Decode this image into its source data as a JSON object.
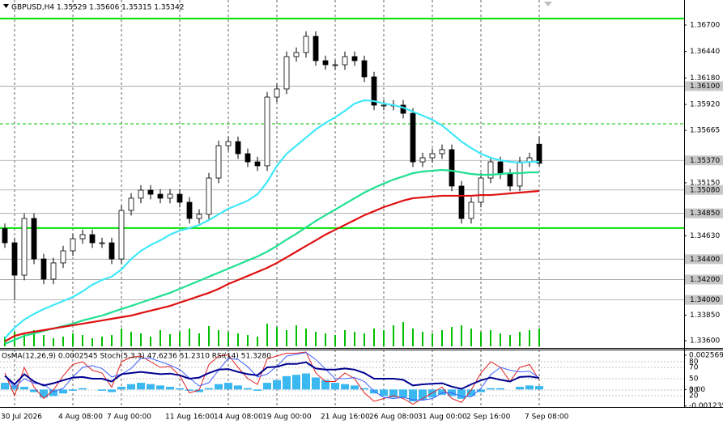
{
  "chart_data": [
    {
      "type": "candlestick",
      "title": "GBPUSD,H4 1.35529 1.35606 1.35315 1.35342",
      "categories": [
        null,
        "30 Jul 2026",
        null,
        null,
        null,
        null,
        null,
        "4 Aug 08:00",
        null,
        null,
        null,
        null,
        "7 Aug 00:00",
        null,
        null,
        null,
        null,
        null,
        "11 Aug 16:00",
        null,
        null,
        null,
        null,
        "14 Aug 08:00",
        null,
        null,
        null,
        null,
        "19 Aug 00:00",
        null,
        null,
        null,
        null,
        null,
        "21 Aug 16:00",
        null,
        null,
        null,
        null,
        "26 Aug 08:00",
        null,
        null,
        null,
        null,
        "31 Aug 00:00",
        null,
        null,
        null,
        null,
        "2 Sep 16:00",
        null,
        null,
        null,
        null,
        null,
        "7 Sep 08:00"
      ],
      "open": [
        1.347,
        1.34561,
        1.34243,
        1.348,
        1.34402,
        1.34204,
        1.34363,
        1.34482,
        1.34601,
        1.34641,
        1.34561,
        1.34561,
        1.34402,
        1.34879,
        1.34999,
        1.35078,
        1.35038,
        1.34999,
        1.35038,
        1.34959,
        1.348,
        1.3484,
        1.35197,
        1.35515,
        1.35555,
        1.35436,
        1.35356,
        1.35317,
        1.35992,
        1.36072,
        1.3639,
        1.3643,
        1.36589,
        1.3635,
        1.3631,
        1.3631,
        1.3639,
        1.3635,
        1.36191,
        1.35913,
        1.35913,
        1.35913,
        1.35833,
        1.35356,
        1.35396,
        1.35436,
        1.35476,
        1.35118,
        1.348,
        1.34959,
        1.35197,
        1.35356,
        1.35237,
        1.35118,
        1.35356,
        1.35529
      ],
      "high": [
        1.3475,
        1.34611,
        1.3485,
        1.3485,
        1.34452,
        1.34413,
        1.34532,
        1.34651,
        1.34691,
        1.34691,
        1.34611,
        1.34611,
        1.34929,
        1.35049,
        1.35128,
        1.35128,
        1.35088,
        1.35088,
        1.35088,
        1.35009,
        1.3489,
        1.35247,
        1.35565,
        1.35605,
        1.35605,
        1.35486,
        1.35406,
        1.36042,
        1.36122,
        1.3644,
        1.3648,
        1.36639,
        1.36639,
        1.364,
        1.3636,
        1.3644,
        1.3644,
        1.364,
        1.36241,
        1.35963,
        1.35963,
        1.35963,
        1.35883,
        1.35446,
        1.35486,
        1.35526,
        1.35526,
        1.35168,
        1.35009,
        1.35247,
        1.35406,
        1.35406,
        1.35287,
        1.35406,
        1.35446,
        1.35606
      ],
      "low": [
        1.34511,
        1.34,
        1.34193,
        1.34352,
        1.34154,
        1.34154,
        1.34313,
        1.34432,
        1.34551,
        1.34511,
        1.34511,
        1.34352,
        1.34352,
        1.34829,
        1.34949,
        1.34988,
        1.34949,
        1.34949,
        1.34909,
        1.3475,
        1.3475,
        1.3479,
        1.35147,
        1.35465,
        1.35386,
        1.35306,
        1.35267,
        1.35267,
        1.35942,
        1.36022,
        1.3634,
        1.3638,
        1.363,
        1.3626,
        1.3626,
        1.3626,
        1.363,
        1.36141,
        1.35863,
        1.35863,
        1.35863,
        1.35783,
        1.35306,
        1.35306,
        1.35346,
        1.35386,
        1.35068,
        1.3475,
        1.3475,
        1.34909,
        1.35147,
        1.35187,
        1.35068,
        1.35068,
        1.35306,
        1.35315
      ],
      "close": [
        1.34561,
        1.34243,
        1.348,
        1.34402,
        1.34204,
        1.34363,
        1.34482,
        1.34601,
        1.34641,
        1.34561,
        1.34561,
        1.34402,
        1.34879,
        1.34999,
        1.35078,
        1.35038,
        1.34999,
        1.35038,
        1.34959,
        1.348,
        1.3484,
        1.35197,
        1.35515,
        1.35555,
        1.35436,
        1.35356,
        1.35317,
        1.35992,
        1.36072,
        1.3639,
        1.3643,
        1.36589,
        1.3635,
        1.3631,
        1.3631,
        1.3639,
        1.3635,
        1.36191,
        1.35913,
        1.35913,
        1.35913,
        1.35833,
        1.35356,
        1.35396,
        1.35436,
        1.35476,
        1.35118,
        1.348,
        1.34959,
        1.35197,
        1.35356,
        1.35237,
        1.35118,
        1.35356,
        1.35396,
        1.35342
      ],
      "up_color": "#ffffff",
      "down_color": "#000000",
      "series": [
        {
          "color": "#40e8f8",
          "values": [
            1.33623,
            1.33727,
            1.33806,
            1.33862,
            1.3391,
            1.33949,
            1.33989,
            1.34029,
            1.34084,
            1.34148,
            1.34196,
            1.34228,
            1.34299,
            1.34402,
            1.34482,
            1.34538,
            1.34585,
            1.34641,
            1.34681,
            1.34705,
            1.34736,
            1.34784,
            1.3484,
            1.34895,
            1.34935,
            1.34975,
            1.35038,
            1.35158,
            1.35317,
            1.35436,
            1.35515,
            1.35595,
            1.35674,
            1.35738,
            1.35794,
            1.35857,
            1.35929,
            1.35961,
            1.35953,
            1.35929,
            1.35913,
            1.35889,
            1.35849,
            1.3581,
            1.3577,
            1.35714,
            1.35635,
            1.35555,
            1.35492,
            1.35436,
            1.35396,
            1.35372,
            1.35356,
            1.35348,
            1.35356,
            1.35356
          ]
        },
        {
          "color": "#20e090",
          "values": [
            1.33568,
            1.33607,
            1.33647,
            1.33671,
            1.33695,
            1.33719,
            1.33743,
            1.33766,
            1.33798,
            1.33822,
            1.33846,
            1.33878,
            1.3391,
            1.33941,
            1.33973,
            1.34005,
            1.34037,
            1.34069,
            1.34108,
            1.34148,
            1.34188,
            1.34228,
            1.34267,
            1.34307,
            1.34347,
            1.34387,
            1.34426,
            1.34474,
            1.3453,
            1.34593,
            1.34649,
            1.34712,
            1.34776,
            1.34832,
            1.34887,
            1.34943,
            1.34999,
            1.35054,
            1.35102,
            1.35142,
            1.35182,
            1.35213,
            1.35245,
            1.35261,
            1.35269,
            1.35277,
            1.35269,
            1.35253,
            1.35237,
            1.35229,
            1.35229,
            1.35237,
            1.35245,
            1.35245,
            1.35253,
            1.35253
          ]
        },
        {
          "color": "#e01010",
          "values": [
            1.33592,
            1.33647,
            1.33671,
            1.33687,
            1.33703,
            1.33719,
            1.33735,
            1.33751,
            1.33766,
            1.33782,
            1.33798,
            1.33814,
            1.3383,
            1.33846,
            1.3387,
            1.33894,
            1.33917,
            1.33941,
            1.33973,
            1.34005,
            1.34037,
            1.34069,
            1.34108,
            1.34156,
            1.34196,
            1.34235,
            1.34275,
            1.34315,
            1.34363,
            1.34418,
            1.34474,
            1.3453,
            1.34585,
            1.34641,
            1.34689,
            1.34736,
            1.34784,
            1.34832,
            1.34871,
            1.34911,
            1.34943,
            1.34975,
            1.34999,
            1.35007,
            1.35015,
            1.35023,
            1.35023,
            1.35023,
            1.35023,
            1.3503,
            1.3503,
            1.35038,
            1.35046,
            1.35054,
            1.35062,
            1.3507
          ]
        }
      ],
      "volume": {
        "color": "#00c000",
        "values": [
          12,
          18,
          15,
          20,
          14,
          10,
          12,
          16,
          14,
          10,
          12,
          14,
          22,
          18,
          16,
          12,
          20,
          15,
          18,
          22,
          16,
          25,
          20,
          18,
          16,
          14,
          12,
          28,
          24,
          20,
          26,
          22,
          18,
          16,
          14,
          20,
          18,
          16,
          22,
          20,
          26,
          30,
          22,
          18,
          16,
          20,
          24,
          26,
          22,
          18,
          20,
          16,
          14,
          18,
          20,
          22
        ]
      },
      "ylim": [
        1.33528,
        1.36946
      ],
      "yticks": [
        {
          "value": 1.367,
          "label": "1.36700"
        },
        {
          "value": 1.3644,
          "label": "1.36440"
        },
        {
          "value": 1.3618,
          "label": "1.36180"
        },
        {
          "value": 1.3592,
          "label": "1.35920"
        },
        1.35665,
        {
          "value": 1.3515,
          "label": "1.35150"
        },
        {
          "value": 1.3463,
          "label": "1.34630"
        },
        {
          "value": 1.3385,
          "label": "1.33850"
        },
        {
          "value": 1.336,
          "label": "1.33600"
        }
      ],
      "levels": [
        {
          "value": 1.361,
          "label": "1.36100"
        },
        {
          "value": 1.3537,
          "label": "1.35370"
        },
        {
          "value": 1.3508,
          "label": "1.35080"
        },
        {
          "value": 1.3485,
          "label": "1.34850"
        },
        {
          "value": 1.344,
          "label": "1.34400"
        },
        {
          "value": 1.342,
          "label": "1.34200"
        },
        {
          "value": 1.34,
          "label": "1.34000"
        }
      ],
      "green_levels": [
        1.36764,
        1.34705
      ],
      "dashed_level": 1.3573,
      "grid": true
    },
    {
      "type": "oscillator",
      "title": "OsMA(12,26,9) 0.0002545 Stoch(5,3,3) 47.6236 51.2310 RSI(14) 51.3280",
      "osma": {
        "color": "#3cb8f0",
        "values": [
          0.0005,
          0.0003,
          0.0002,
          -0.0002,
          -0.0006,
          -0.0005,
          -0.0003,
          -0.0001,
          0.0001,
          0,
          -0.0001,
          -0.0002,
          0.0002,
          0.0004,
          0.0005,
          0.0004,
          0.0003,
          0.0002,
          0.0001,
          -0.0001,
          -0.0002,
          0.0001,
          0.0004,
          0.0005,
          0.0003,
          0.0001,
          -0.0001,
          0.0005,
          0.0007,
          0.001,
          0.0011,
          0.0012,
          0.0009,
          0.0007,
          0.0005,
          0.0004,
          0.0003,
          0.0001,
          -0.0003,
          -0.0005,
          -0.0006,
          -0.0006,
          -0.0009,
          -0.0008,
          -0.0006,
          -0.0004,
          -0.0005,
          -0.0007,
          -0.0005,
          -0.0002,
          0.0001,
          0.0001,
          0,
          0.0002,
          0.0003,
          0.0002545
        ]
      },
      "series": [
        {
          "axis": "y2",
          "color": "#e02020",
          "width": 1,
          "values": [
            60,
            20,
            70,
            35,
            15,
            30,
            55,
            75,
            80,
            65,
            60,
            35,
            80,
            88,
            90,
            80,
            70,
            72,
            55,
            25,
            30,
            75,
            90,
            92,
            70,
            50,
            40,
            85,
            90,
            95,
            95,
            97,
            60,
            45,
            45,
            60,
            50,
            25,
            10,
            15,
            20,
            15,
            5,
            15,
            25,
            35,
            15,
            8,
            30,
            60,
            80,
            70,
            45,
            70,
            75,
            47.6236
          ]
        },
        {
          "axis": "y2",
          "color": "#4060ff",
          "width": 1,
          "values": [
            55,
            35,
            50,
            42,
            40,
            27,
            33,
            53,
            70,
            73,
            68,
            53,
            58,
            68,
            86,
            86,
            80,
            74,
            66,
            51,
            37,
            43,
            65,
            86,
            84,
            71,
            53,
            58,
            72,
            90,
            93,
            96,
            84,
            67,
            50,
            50,
            52,
            45,
            28,
            17,
            15,
            17,
            13,
            12,
            15,
            25,
            25,
            19,
            18,
            33,
            57,
            70,
            65,
            62,
            63,
            51.231
          ]
        },
        {
          "axis": "y2",
          "color": "#000090",
          "width": 2,
          "values": [
            55,
            40,
            58,
            45,
            38,
            42,
            47,
            52,
            53,
            50,
            50,
            45,
            58,
            60,
            62,
            60,
            58,
            59,
            56,
            50,
            52,
            60,
            66,
            67,
            62,
            58,
            56,
            70,
            71,
            76,
            76,
            79,
            68,
            66,
            66,
            68,
            66,
            60,
            50,
            50,
            50,
            48,
            38,
            40,
            41,
            42,
            36,
            32,
            40,
            47,
            52,
            48,
            45,
            53,
            54,
            51.328
          ]
        }
      ],
      "ylim": [
        -0.001315,
        0.00293
      ],
      "yticks": [
        0.0025696,
        {
          "value": 0,
          "label": "0.00"
        },
        -0.001235
      ],
      "y2lim": [
        0,
        100
      ],
      "y2ticks": [
        80,
        70,
        50,
        30,
        20
      ]
    }
  ]
}
